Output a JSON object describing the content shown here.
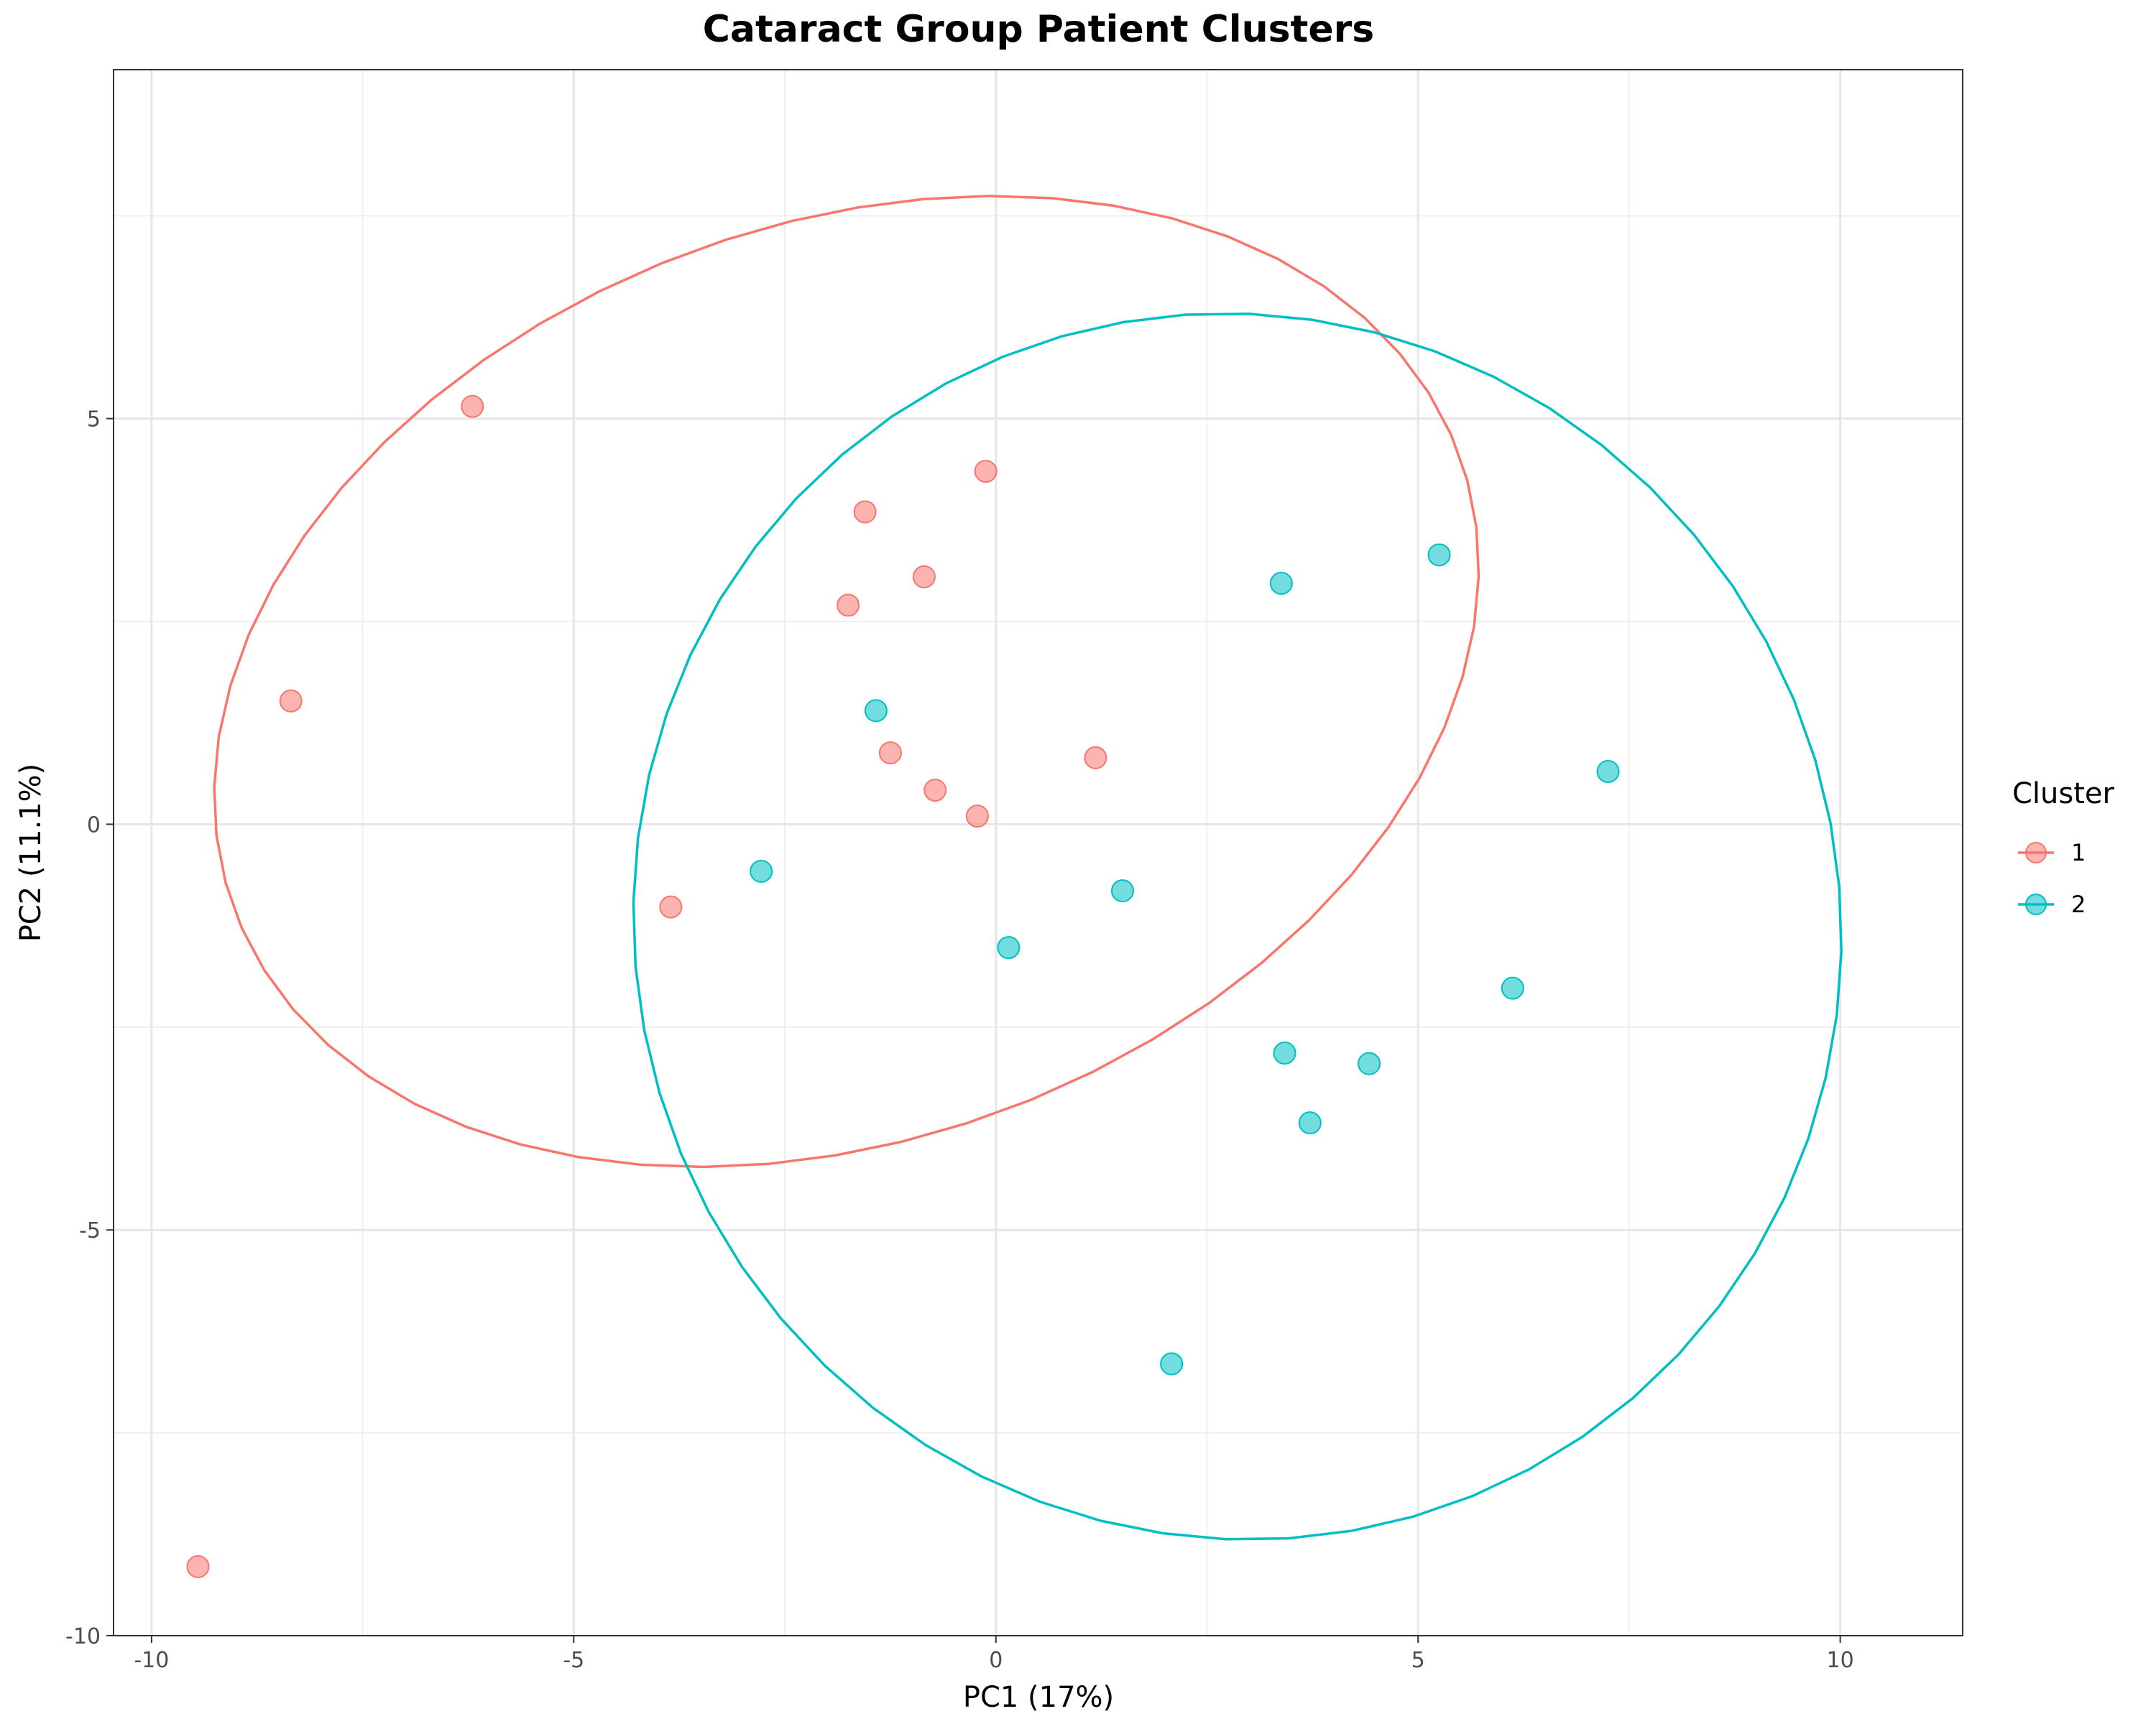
{
  "chart_data": {
    "type": "scatter",
    "title": "Cataract Group Patient Clusters",
    "xlabel": "PC1 (17%)",
    "ylabel": "PC2 (11.1%)",
    "xlim": [
      -10.45,
      11.45
    ],
    "ylim": [
      -10.0,
      9.3
    ],
    "xticks": [
      -10,
      -5,
      0,
      5,
      10
    ],
    "yticks": [
      -10,
      -5,
      0,
      5
    ],
    "xtick_labels": [
      "-10",
      "-5",
      "0",
      "5",
      "10"
    ],
    "ytick_labels": [
      "-10",
      "-5",
      "0",
      "5"
    ],
    "grid": true,
    "legend": {
      "title": "Cluster",
      "placement": "right",
      "entries": [
        "1",
        "2"
      ]
    },
    "colors": {
      "1": "#F8766D",
      "2": "#00BFC4"
    },
    "series": [
      {
        "name": "1",
        "color": "#F8766D",
        "points": [
          [
            -9.45,
            -9.15
          ],
          [
            -8.35,
            1.52
          ],
          [
            -6.2,
            5.15
          ],
          [
            -3.85,
            -1.02
          ],
          [
            -1.75,
            2.7
          ],
          [
            -1.55,
            3.85
          ],
          [
            -1.25,
            0.88
          ],
          [
            -0.85,
            3.05
          ],
          [
            -0.72,
            0.42
          ],
          [
            -0.22,
            0.1
          ],
          [
            -0.12,
            4.35
          ],
          [
            1.18,
            0.82
          ]
        ],
        "ellipse": {
          "center": [
            -1.77,
            1.76
          ],
          "semi_axes": [
            7.78,
            5.6
          ],
          "angle_deg": 22.97
        }
      },
      {
        "name": "2",
        "color": "#00BFC4",
        "points": [
          [
            -2.78,
            -0.58
          ],
          [
            -1.42,
            1.4
          ],
          [
            0.15,
            -1.52
          ],
          [
            1.5,
            -0.82
          ],
          [
            2.08,
            -6.65
          ],
          [
            3.38,
            2.97
          ],
          [
            3.42,
            -2.82
          ],
          [
            3.72,
            -3.68
          ],
          [
            4.42,
            -2.95
          ],
          [
            5.25,
            3.32
          ],
          [
            6.12,
            -2.02
          ],
          [
            7.25,
            0.65
          ]
        ],
        "ellipse": {
          "center": [
            2.86,
            -1.26
          ],
          "semi_axes": [
            7.57,
            7.14
          ],
          "angle_deg": -79.7
        }
      }
    ]
  }
}
